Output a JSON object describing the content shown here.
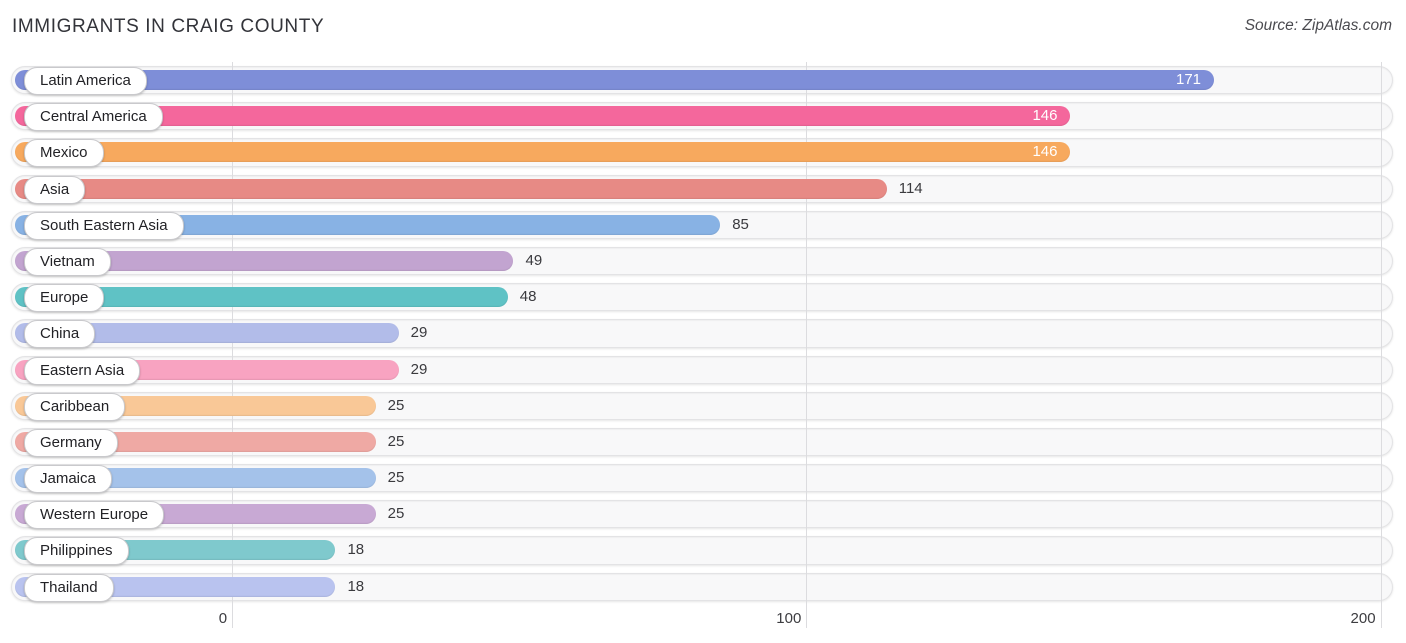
{
  "header": {
    "title": "IMMIGRANTS IN CRAIG COUNTY",
    "source": "Source: ZipAtlas.com"
  },
  "chart_data": {
    "type": "bar",
    "orientation": "horizontal",
    "title": "IMMIGRANTS IN CRAIG COUNTY",
    "xlabel": "",
    "ylabel": "",
    "xlim": [
      0,
      200
    ],
    "x_ticks": [
      0,
      100,
      200
    ],
    "grid": true,
    "legend": false,
    "categories": [
      "Latin America",
      "Central America",
      "Mexico",
      "Asia",
      "South Eastern Asia",
      "Vietnam",
      "Europe",
      "China",
      "Eastern Asia",
      "Caribbean",
      "Germany",
      "Jamaica",
      "Western Europe",
      "Philippines",
      "Thailand"
    ],
    "values": [
      171,
      146,
      146,
      114,
      85,
      49,
      48,
      29,
      29,
      25,
      25,
      25,
      25,
      18,
      18
    ],
    "rows": [
      {
        "label": "Latin America",
        "value": 171,
        "color": "#7e8ed8"
      },
      {
        "label": "Central America",
        "value": 146,
        "color": "#f4679c"
      },
      {
        "label": "Mexico",
        "value": 146,
        "color": "#f7a95e"
      },
      {
        "label": "Asia",
        "value": 114,
        "color": "#e78a85"
      },
      {
        "label": "South Eastern Asia",
        "value": 85,
        "color": "#88b2e4"
      },
      {
        "label": "Vietnam",
        "value": 49,
        "color": "#c2a4d0"
      },
      {
        "label": "Europe",
        "value": 48,
        "color": "#5fc2c5"
      },
      {
        "label": "China",
        "value": 29,
        "color": "#b2bce9"
      },
      {
        "label": "Eastern Asia",
        "value": 29,
        "color": "#f8a3c1"
      },
      {
        "label": "Caribbean",
        "value": 25,
        "color": "#f9c897"
      },
      {
        "label": "Germany",
        "value": 25,
        "color": "#efa9a4"
      },
      {
        "label": "Jamaica",
        "value": 25,
        "color": "#a4c2ea"
      },
      {
        "label": "Western Europe",
        "value": 25,
        "color": "#c8a9d4"
      },
      {
        "label": "Philippines",
        "value": 18,
        "color": "#7fc9cd"
      },
      {
        "label": "Thailand",
        "value": 18,
        "color": "#b9c3ef"
      }
    ],
    "value_label_color_inside": "#ffffff",
    "value_label_color_outside": "#3a3a3e",
    "gridline_color": "#dcdcdf"
  }
}
